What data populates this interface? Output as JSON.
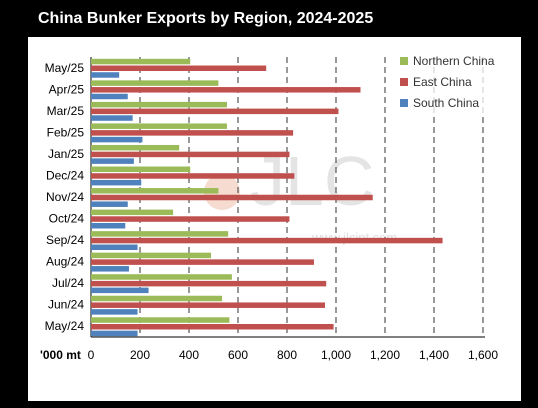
{
  "chart_data": {
    "type": "bar",
    "orientation": "horizontal",
    "title": "China Bunker Exports by Region, 2024-2025",
    "unit_label": "'000 mt",
    "categories": [
      "May/25",
      "Apr/25",
      "Mar/25",
      "Feb/25",
      "Jan/25",
      "Dec/24",
      "Nov/24",
      "Oct/24",
      "Sep/24",
      "Aug/24",
      "Jul/24",
      "Jun/24",
      "May/24"
    ],
    "series": [
      {
        "name": "Northern China",
        "color": "#9BBB59",
        "values": [
          405,
          520,
          555,
          555,
          360,
          405,
          520,
          335,
          560,
          490,
          575,
          535,
          565
        ]
      },
      {
        "name": "East China",
        "color": "#C0504D",
        "values": [
          715,
          1100,
          1010,
          825,
          810,
          830,
          1150,
          810,
          1435,
          910,
          960,
          955,
          990
        ]
      },
      {
        "name": "South China",
        "color": "#4F81BD",
        "values": [
          115,
          150,
          170,
          210,
          175,
          205,
          150,
          140,
          190,
          155,
          235,
          190,
          190
        ]
      }
    ],
    "x_ticks": [
      0,
      200,
      400,
      600,
      800,
      1000,
      1200,
      1400,
      1600
    ],
    "x_tick_labels": [
      "0",
      "200",
      "400",
      "600",
      "800",
      "1,000",
      "1,200",
      "1,400",
      "1,600"
    ],
    "xlim": [
      0,
      1600
    ],
    "grid": "vertical dashed",
    "legend_position": "top-right",
    "watermark": {
      "logo": "JLC",
      "url": "www.jlcint.com"
    }
  }
}
